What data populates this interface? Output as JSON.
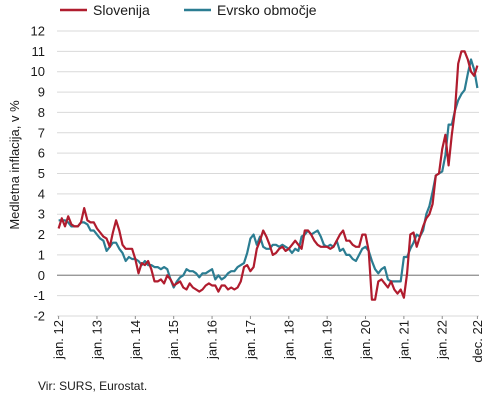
{
  "chart_data": {
    "type": "line",
    "ylabel": "Medletna inflacija, v %",
    "ylim": [
      -2,
      12
    ],
    "yticks": [
      -2,
      -1,
      0,
      1,
      2,
      3,
      4,
      5,
      6,
      7,
      8,
      9,
      10,
      11,
      12
    ],
    "grid": "horizontal",
    "legend_position": "top",
    "x_start": "jan. 12",
    "x_end": "dec. 22",
    "xtick_labels": [
      "jan. 12",
      "jan. 13",
      "jan. 14",
      "jan. 15",
      "jan. 16",
      "jan. 17",
      "jan. 18",
      "jan. 19",
      "jan. 20",
      "jan. 21",
      "jan. 22",
      "dec. 22"
    ],
    "series": [
      {
        "name": "Slovenija",
        "color": "#b01c2e",
        "values": [
          2.3,
          2.8,
          2.4,
          2.9,
          2.5,
          2.4,
          2.4,
          2.6,
          3.3,
          2.7,
          2.6,
          2.6,
          2.3,
          2.1,
          1.9,
          1.8,
          1.4,
          2.1,
          2.7,
          2.2,
          1.5,
          1.3,
          1.3,
          1.3,
          0.8,
          0.1,
          0.6,
          0.5,
          0.7,
          0.3,
          -0.3,
          -0.3,
          -0.2,
          -0.4,
          0.0,
          -0.2,
          -0.5,
          -0.4,
          -0.3,
          -0.6,
          -0.7,
          -0.4,
          -0.6,
          -0.7,
          -0.8,
          -0.7,
          -0.5,
          -0.4,
          -0.5,
          -0.5,
          -0.8,
          -0.5,
          -0.5,
          -0.7,
          -0.6,
          -0.7,
          -0.6,
          -0.3,
          0.4,
          0.5,
          0.2,
          0.4,
          1.3,
          1.7,
          2.2,
          1.9,
          1.5,
          1.0,
          1.1,
          1.3,
          1.4,
          1.2,
          1.3,
          1.5,
          1.7,
          1.5,
          1.3,
          2.2,
          2.2,
          2.0,
          1.7,
          1.5,
          1.4,
          1.4,
          1.4,
          1.3,
          1.4,
          1.7,
          2.0,
          2.2,
          1.7,
          1.7,
          1.5,
          1.4,
          1.4,
          2.0,
          2.0,
          1.2,
          -1.2,
          -1.2,
          -0.3,
          -0.2,
          -0.4,
          -0.6,
          -0.3,
          -0.7,
          -0.9,
          -0.7,
          -1.1,
          0.1,
          2.0,
          2.1,
          1.4,
          1.9,
          2.4,
          2.8,
          3.0,
          3.5,
          4.9,
          5.0,
          6.2,
          6.9,
          5.4,
          6.9,
          8.1,
          10.4,
          11.0,
          11.0,
          10.6,
          10.0,
          9.8,
          10.3
        ]
      },
      {
        "name": "Evrsko območje",
        "color": "#2b7d92",
        "values": [
          2.7,
          2.7,
          2.7,
          2.6,
          2.4,
          2.4,
          2.4,
          2.6,
          2.6,
          2.5,
          2.2,
          2.2,
          2.0,
          1.8,
          1.7,
          1.2,
          1.4,
          1.6,
          1.6,
          1.3,
          1.1,
          0.7,
          0.9,
          0.8,
          0.8,
          0.7,
          0.5,
          0.7,
          0.5,
          0.5,
          0.4,
          0.4,
          0.3,
          0.4,
          0.3,
          -0.2,
          -0.6,
          -0.3,
          -0.1,
          0.0,
          0.3,
          0.2,
          0.2,
          0.1,
          -0.1,
          0.1,
          0.1,
          0.2,
          0.3,
          -0.2,
          0.0,
          -0.2,
          -0.1,
          0.1,
          0.2,
          0.2,
          0.4,
          0.5,
          0.6,
          1.1,
          1.8,
          2.0,
          1.5,
          1.9,
          1.4,
          1.3,
          1.3,
          1.5,
          1.5,
          1.4,
          1.5,
          1.4,
          1.3,
          1.1,
          1.3,
          1.2,
          1.9,
          2.0,
          2.2,
          2.0,
          2.1,
          2.2,
          1.9,
          1.5,
          1.4,
          1.5,
          1.4,
          1.7,
          1.2,
          1.3,
          1.0,
          1.0,
          0.8,
          0.7,
          1.0,
          1.3,
          1.4,
          1.2,
          0.7,
          0.3,
          0.1,
          0.3,
          0.4,
          -0.2,
          -0.3,
          -0.3,
          -0.3,
          -0.3,
          0.9,
          0.9,
          1.3,
          1.6,
          2.0,
          1.9,
          2.2,
          3.0,
          3.4,
          4.1,
          4.9,
          5.0,
          5.1,
          5.9,
          7.4,
          7.4,
          8.1,
          8.6,
          8.9,
          9.1,
          9.9,
          10.6,
          10.1,
          9.2
        ]
      }
    ]
  },
  "source_text": "Vir: SURS, Eurostat."
}
